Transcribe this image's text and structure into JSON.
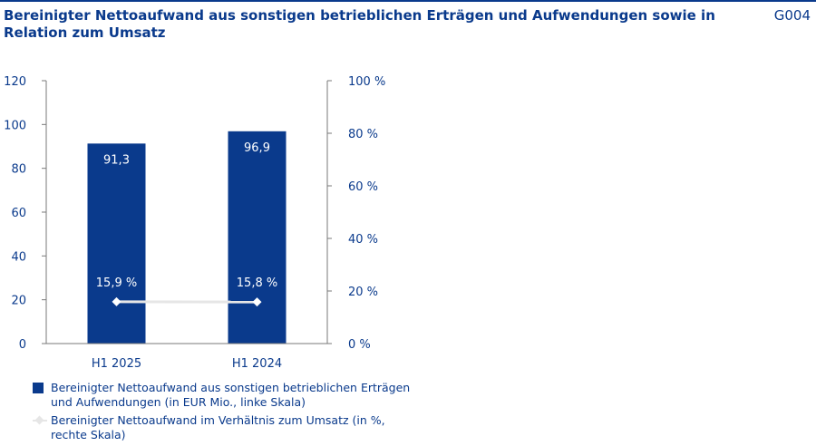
{
  "header": {
    "title": "Bereinigter Nettoaufwand aus sonstigen betrieblichen Erträgen und Aufwendungen sowie in Relation zum Umsatz",
    "code": "G004"
  },
  "colors": {
    "bar": "#0a3a8c",
    "line": "#e6e6e6",
    "text": "#0a3a8c",
    "axis": "#7a7a7a"
  },
  "chart_data": {
    "type": "bar",
    "title": "Bereinigter Nettoaufwand aus sonstigen betrieblichen Erträgen und Aufwendungen sowie in Relation zum Umsatz",
    "categories": [
      "H1 2025",
      "H1 2024"
    ],
    "series": [
      {
        "name": "Bereinigter Nettoaufwand aus sonstigen betrieblichen Erträgen und Aufwendungen (in EUR Mio., linke Skala)",
        "type": "bar",
        "axis": "left",
        "values": [
          91.3,
          96.9
        ],
        "labels": [
          "91,3",
          "96,9"
        ]
      },
      {
        "name": "Bereinigter Nettoaufwand im Verhältnis zum Umsatz (in %, rechte Skala)",
        "type": "line",
        "axis": "right",
        "values": [
          15.9,
          15.8
        ],
        "labels": [
          "15,9 %",
          "15,8 %"
        ]
      }
    ],
    "yleft": {
      "min": 0,
      "max": 120,
      "ticks": [
        "0",
        "20",
        "40",
        "60",
        "80",
        "100",
        "120"
      ]
    },
    "yright": {
      "min": 0,
      "max": 100,
      "ticks": [
        "0 %",
        "20 %",
        "40 %",
        "60 %",
        "80 %",
        "100 %"
      ]
    },
    "grid": false,
    "legend_position": "bottom-left"
  }
}
